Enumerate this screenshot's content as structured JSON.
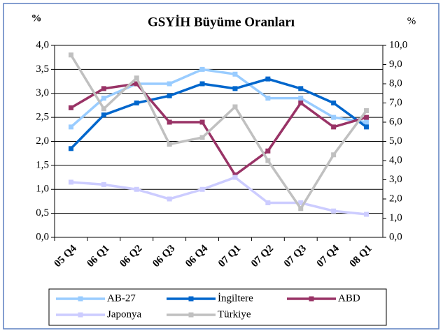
{
  "chart_data": {
    "type": "line",
    "title": "GSYİH Büyüme Oranları",
    "y_label": "%",
    "y2_label": "%",
    "categories": [
      "05 Q4",
      "06 Q1",
      "06 Q2",
      "06 Q3",
      "06 Q4",
      "07 Q1",
      "07 Q2",
      "07 Q3",
      "07 Q4",
      "08 Q1"
    ],
    "series": [
      {
        "name": "AB-27",
        "color": "#99ccff",
        "values": [
          2.3,
          2.9,
          3.2,
          3.2,
          3.5,
          3.4,
          2.9,
          2.9,
          2.5,
          2.4
        ]
      },
      {
        "name": "İngiltere",
        "color": "#0066cc",
        "values": [
          1.85,
          2.55,
          2.8,
          2.95,
          3.2,
          3.1,
          3.3,
          3.1,
          2.8,
          2.3
        ]
      },
      {
        "name": "ABD",
        "color": "#993366",
        "values": [
          2.7,
          3.1,
          3.2,
          2.4,
          2.4,
          1.3,
          1.8,
          2.8,
          2.3,
          2.5
        ]
      },
      {
        "name": "Japonya",
        "color": "#ccccff",
        "values": [
          1.15,
          1.1,
          1.0,
          0.8,
          1.0,
          1.25,
          0.72,
          0.72,
          0.55,
          0.48
        ]
      },
      {
        "name": "Türkiye",
        "color": "#c0c0c0",
        "axis": "y2",
        "values": [
          9.5,
          6.7,
          8.3,
          4.85,
          5.2,
          6.8,
          4.0,
          1.5,
          4.3,
          6.6
        ]
      }
    ],
    "ylim": [
      0,
      4
    ],
    "yticks": [
      {
        "value": 0,
        "label": "0,0"
      },
      {
        "value": 0.5,
        "label": "0,5"
      },
      {
        "value": 1,
        "label": "1,0"
      },
      {
        "value": 1.5,
        "label": "1,5"
      },
      {
        "value": 2,
        "label": "2,0"
      },
      {
        "value": 2.5,
        "label": "2,5"
      },
      {
        "value": 3,
        "label": "3,0"
      },
      {
        "value": 3.5,
        "label": "3,5"
      },
      {
        "value": 4,
        "label": "4,0"
      }
    ],
    "y2lim": [
      0,
      10
    ],
    "y2ticks": [
      {
        "value": 0,
        "label": "0,0"
      },
      {
        "value": 1,
        "label": "1,0"
      },
      {
        "value": 2,
        "label": "2,0"
      },
      {
        "value": 3,
        "label": "3,0"
      },
      {
        "value": 4,
        "label": "4,0"
      },
      {
        "value": 5,
        "label": "5,0"
      },
      {
        "value": 6,
        "label": "6,0"
      },
      {
        "value": 7,
        "label": "7,0"
      },
      {
        "value": 8,
        "label": "8,0"
      },
      {
        "value": 9,
        "label": "9,0"
      },
      {
        "value": 10,
        "label": "10,0"
      }
    ],
    "grid": true,
    "legend": "bottom"
  }
}
